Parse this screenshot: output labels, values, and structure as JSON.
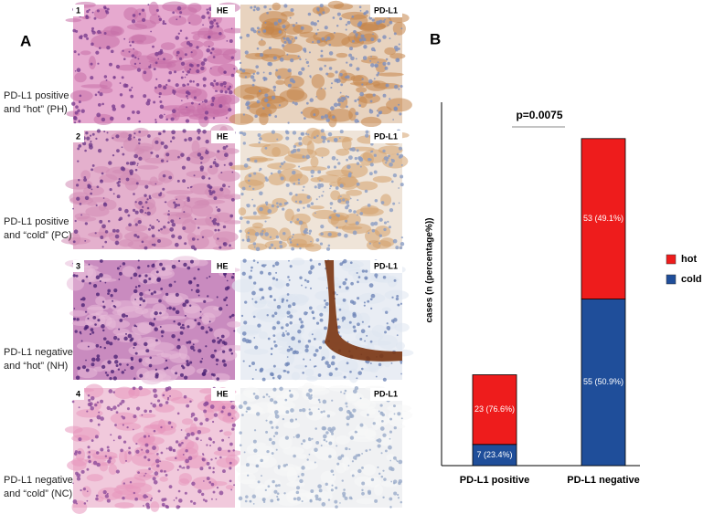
{
  "panel_a": {
    "letter": "A",
    "rows": [
      {
        "number": "1",
        "he": "HE",
        "pdl1": "PD-L1",
        "label": [
          "PD-L1 positive",
          "and “hot” (PH)"
        ]
      },
      {
        "number": "2",
        "he": "HE",
        "pdl1": "PD-L1",
        "label": [
          "PD-L1 positive",
          "and “cold” (PC)"
        ]
      },
      {
        "number": "3",
        "he": "HE",
        "pdl1": "PD-L1",
        "label": [
          "PD-L1 negative",
          "and “hot” (NH)"
        ]
      },
      {
        "number": "4",
        "he": "HE",
        "pdl1": "PD-L1",
        "label": [
          "PD-L1 negative",
          "and “cold” (NC)"
        ]
      }
    ]
  },
  "chart_data": {
    "type": "stacked-bar",
    "panel_letter": "B",
    "y_label": "cases (n (percentage%))",
    "annotation": "p=0.0075",
    "categories": [
      "PD-L1 positive",
      "PD-L1 negative"
    ],
    "series": [
      {
        "name": "cold",
        "color": "#1f4e9a",
        "values": [
          7,
          55
        ],
        "value_labels": [
          "7 (23.4%)",
          "55 (50.9%)"
        ]
      },
      {
        "name": "hot",
        "color": "#ee1c1c",
        "values": [
          23,
          53
        ],
        "value_labels": [
          "23 (76.6%)",
          "53 (49.1%)"
        ]
      }
    ],
    "ylim": [
      0,
      120
    ],
    "legend": "right"
  }
}
